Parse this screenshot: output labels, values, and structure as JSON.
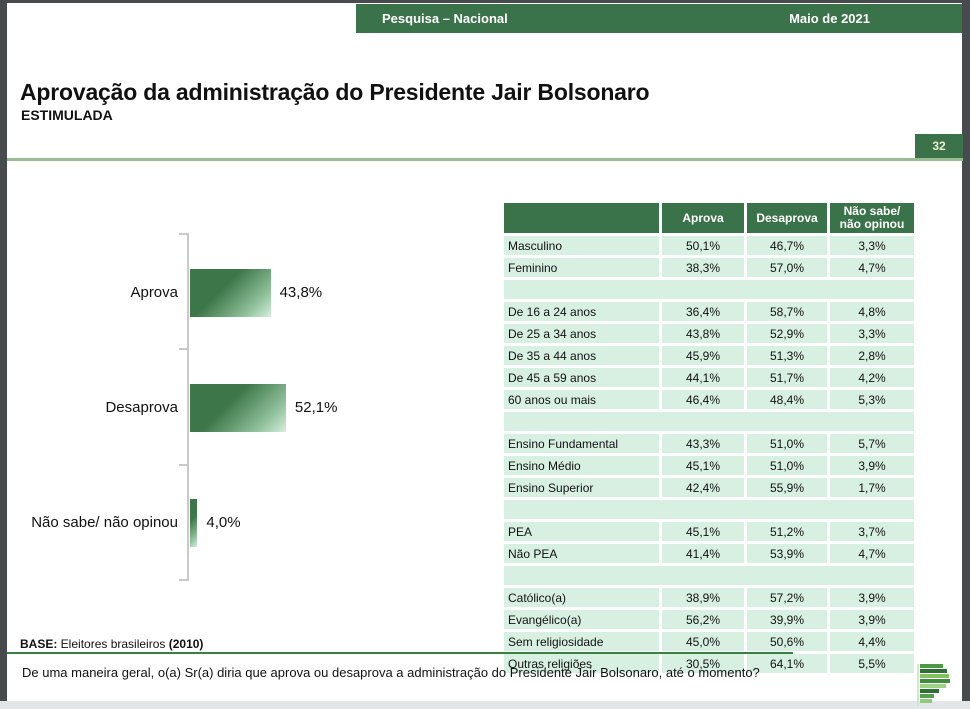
{
  "header": {
    "left": "Pesquisa – Nacional",
    "right": "Maio de 2021"
  },
  "title": {
    "main": "Aprovação da administração do Presidente Jair Bolsonaro",
    "sub": "ESTIMULADA"
  },
  "page_number": "32",
  "colors": {
    "accent_dark_green": "#3a7249",
    "row_light_green": "#d8f0e2",
    "title_divider_green": "#99bb90",
    "base_divider_green": "#3a8040",
    "axis_gray": "#c9c9c9",
    "page_number_text": "#f2edd2",
    "window_border": "#474b4e"
  },
  "icons": {
    "logo": "p-green-bars-logo"
  },
  "chart_data": [
    {
      "type": "bar",
      "orientation": "horizontal",
      "title": "Aprovação da administração do Presidente Jair Bolsonaro — ESTIMULADA",
      "categories": [
        "Aprova",
        "Desaprova",
        "Não sabe/ não opinou"
      ],
      "values": [
        43.8,
        52.1,
        4.0
      ],
      "value_labels": [
        "43,8%",
        "52,1%",
        "4,0%"
      ],
      "xlim": [
        0,
        60
      ],
      "grid": "off",
      "legend": "none",
      "bar_gradient": [
        "#3d7649",
        "#8fc09a",
        "#d6efdc"
      ]
    },
    {
      "type": "table",
      "headers": [
        "",
        "Aprova",
        "Desaprova",
        "Não sabe/ não opinou"
      ],
      "header_bg": "#3a7249",
      "row_bg": "#d8f0e2",
      "groups": [
        {
          "rows": [
            [
              "Masculino",
              "50,1%",
              "46,7%",
              "3,3%"
            ],
            [
              "Feminino",
              "38,3%",
              "57,0%",
              "4,7%"
            ]
          ]
        },
        {
          "rows": [
            [
              "De 16 a 24 anos",
              "36,4%",
              "58,7%",
              "4,8%"
            ],
            [
              "De 25 a 34 anos",
              "43,8%",
              "52,9%",
              "3,3%"
            ],
            [
              "De 35 a 44 anos",
              "45,9%",
              "51,3%",
              "2,8%"
            ],
            [
              "De 45 a 59 anos",
              "44,1%",
              "51,7%",
              "4,2%"
            ],
            [
              "60 anos ou mais",
              "46,4%",
              "48,4%",
              "5,3%"
            ]
          ]
        },
        {
          "rows": [
            [
              "Ensino Fundamental",
              "43,3%",
              "51,0%",
              "5,7%"
            ],
            [
              "Ensino Médio",
              "45,1%",
              "51,0%",
              "3,9%"
            ],
            [
              "Ensino Superior",
              "42,4%",
              "55,9%",
              "1,7%"
            ]
          ]
        },
        {
          "rows": [
            [
              "PEA",
              "45,1%",
              "51,2%",
              "3,7%"
            ],
            [
              "Não PEA",
              "41,4%",
              "53,9%",
              "4,7%"
            ]
          ]
        },
        {
          "rows": [
            [
              "Católico(a)",
              "38,9%",
              "57,2%",
              "3,9%"
            ],
            [
              "Evangélico(a)",
              "56,2%",
              "39,9%",
              "3,9%"
            ],
            [
              "Sem religiosidade",
              "45,0%",
              "50,6%",
              "4,4%"
            ],
            [
              "Outras religiões",
              "30,5%",
              "64,1%",
              "5,5%"
            ]
          ]
        }
      ]
    }
  ],
  "footer": {
    "base_label": "BASE:",
    "base_text": " Eleitores brasileiros ",
    "base_emph": "(2010)",
    "question": "De uma maneira geral, o(a) Sr(a) diria que aprova ou desaprova a administração do Presidente Jair Bolsonaro, até o momento?"
  }
}
